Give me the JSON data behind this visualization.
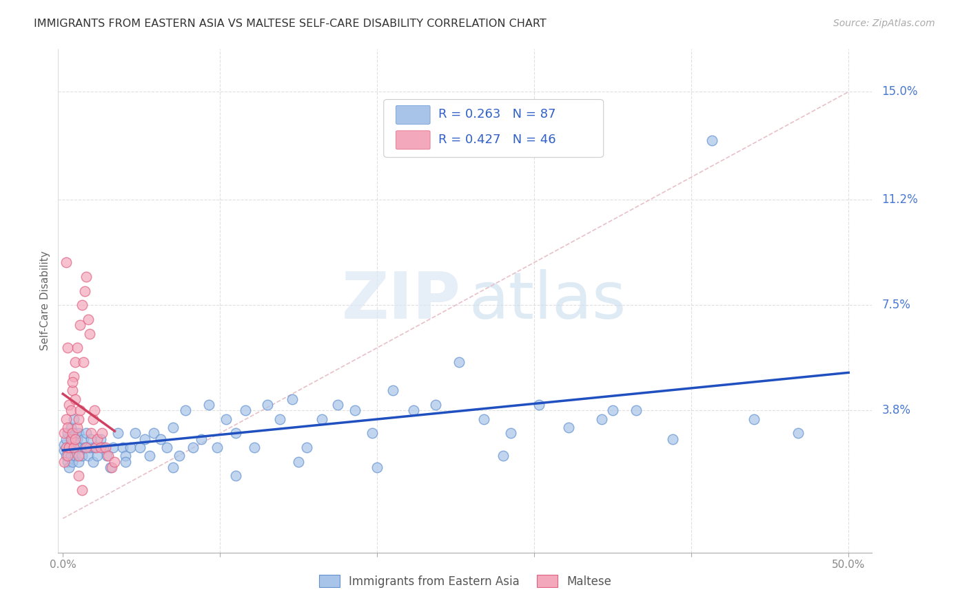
{
  "title": "IMMIGRANTS FROM EASTERN ASIA VS MALTESE SELF-CARE DISABILITY CORRELATION CHART",
  "source": "Source: ZipAtlas.com",
  "ylabel": "Self-Care Disability",
  "xlim": [
    -0.003,
    0.515
  ],
  "ylim": [
    -0.012,
    0.165
  ],
  "blue_color": "#a8c4e8",
  "pink_color": "#f4a8bc",
  "blue_edge_color": "#6090d0",
  "pink_edge_color": "#e06080",
  "blue_line_color": "#2050c0",
  "pink_line_color": "#d04060",
  "legend_text_color": "#3060c8",
  "right_label_color": "#4878d0",
  "watermark_zip_color": "#dce8f4",
  "watermark_atlas_color": "#c8dced",
  "R_blue": 0.263,
  "N_blue": 87,
  "R_pink": 0.427,
  "N_pink": 46,
  "ytick_vals": [
    0.038,
    0.075,
    0.112,
    0.15
  ],
  "ytick_labels": [
    "3.8%",
    "7.5%",
    "11.2%",
    "15.0%"
  ],
  "blue_scatter_x": [
    0.001,
    0.001,
    0.002,
    0.002,
    0.003,
    0.003,
    0.004,
    0.004,
    0.005,
    0.005,
    0.006,
    0.006,
    0.007,
    0.007,
    0.008,
    0.008,
    0.009,
    0.009,
    0.01,
    0.01,
    0.011,
    0.012,
    0.013,
    0.014,
    0.015,
    0.016,
    0.017,
    0.018,
    0.019,
    0.02,
    0.022,
    0.024,
    0.026,
    0.028,
    0.03,
    0.032,
    0.035,
    0.038,
    0.04,
    0.043,
    0.046,
    0.049,
    0.052,
    0.055,
    0.058,
    0.062,
    0.066,
    0.07,
    0.074,
    0.078,
    0.083,
    0.088,
    0.093,
    0.098,
    0.104,
    0.11,
    0.116,
    0.122,
    0.13,
    0.138,
    0.146,
    0.155,
    0.165,
    0.175,
    0.186,
    0.197,
    0.21,
    0.223,
    0.237,
    0.252,
    0.268,
    0.285,
    0.303,
    0.322,
    0.343,
    0.365,
    0.388,
    0.413,
    0.44,
    0.468,
    0.35,
    0.28,
    0.2,
    0.15,
    0.11,
    0.07,
    0.04
  ],
  "blue_scatter_y": [
    0.024,
    0.026,
    0.022,
    0.028,
    0.02,
    0.03,
    0.018,
    0.025,
    0.022,
    0.032,
    0.02,
    0.028,
    0.025,
    0.035,
    0.022,
    0.03,
    0.025,
    0.028,
    0.02,
    0.03,
    0.025,
    0.022,
    0.028,
    0.025,
    0.03,
    0.022,
    0.025,
    0.028,
    0.02,
    0.025,
    0.022,
    0.028,
    0.025,
    0.022,
    0.018,
    0.025,
    0.03,
    0.025,
    0.022,
    0.025,
    0.03,
    0.025,
    0.028,
    0.022,
    0.03,
    0.028,
    0.025,
    0.032,
    0.022,
    0.038,
    0.025,
    0.028,
    0.04,
    0.025,
    0.035,
    0.03,
    0.038,
    0.025,
    0.04,
    0.035,
    0.042,
    0.025,
    0.035,
    0.04,
    0.038,
    0.03,
    0.045,
    0.038,
    0.04,
    0.055,
    0.035,
    0.03,
    0.04,
    0.032,
    0.035,
    0.038,
    0.028,
    0.133,
    0.035,
    0.03,
    0.038,
    0.022,
    0.018,
    0.02,
    0.015,
    0.018,
    0.02
  ],
  "pink_scatter_x": [
    0.001,
    0.001,
    0.002,
    0.002,
    0.003,
    0.003,
    0.004,
    0.004,
    0.005,
    0.005,
    0.006,
    0.006,
    0.007,
    0.007,
    0.008,
    0.008,
    0.009,
    0.009,
    0.01,
    0.01,
    0.011,
    0.011,
    0.012,
    0.013,
    0.014,
    0.015,
    0.015,
    0.016,
    0.017,
    0.018,
    0.019,
    0.02,
    0.021,
    0.022,
    0.024,
    0.025,
    0.027,
    0.029,
    0.031,
    0.033,
    0.002,
    0.003,
    0.006,
    0.008,
    0.01,
    0.012
  ],
  "pink_scatter_y": [
    0.02,
    0.03,
    0.025,
    0.035,
    0.022,
    0.032,
    0.025,
    0.04,
    0.028,
    0.038,
    0.03,
    0.045,
    0.025,
    0.05,
    0.028,
    0.055,
    0.032,
    0.06,
    0.022,
    0.035,
    0.068,
    0.038,
    0.075,
    0.055,
    0.08,
    0.085,
    0.025,
    0.07,
    0.065,
    0.03,
    0.035,
    0.038,
    0.025,
    0.028,
    0.025,
    0.03,
    0.025,
    0.022,
    0.018,
    0.02,
    0.09,
    0.06,
    0.048,
    0.042,
    0.015,
    0.01
  ],
  "diag_line_color": "#e8c0c8",
  "grid_color": "#d8d8d8"
}
